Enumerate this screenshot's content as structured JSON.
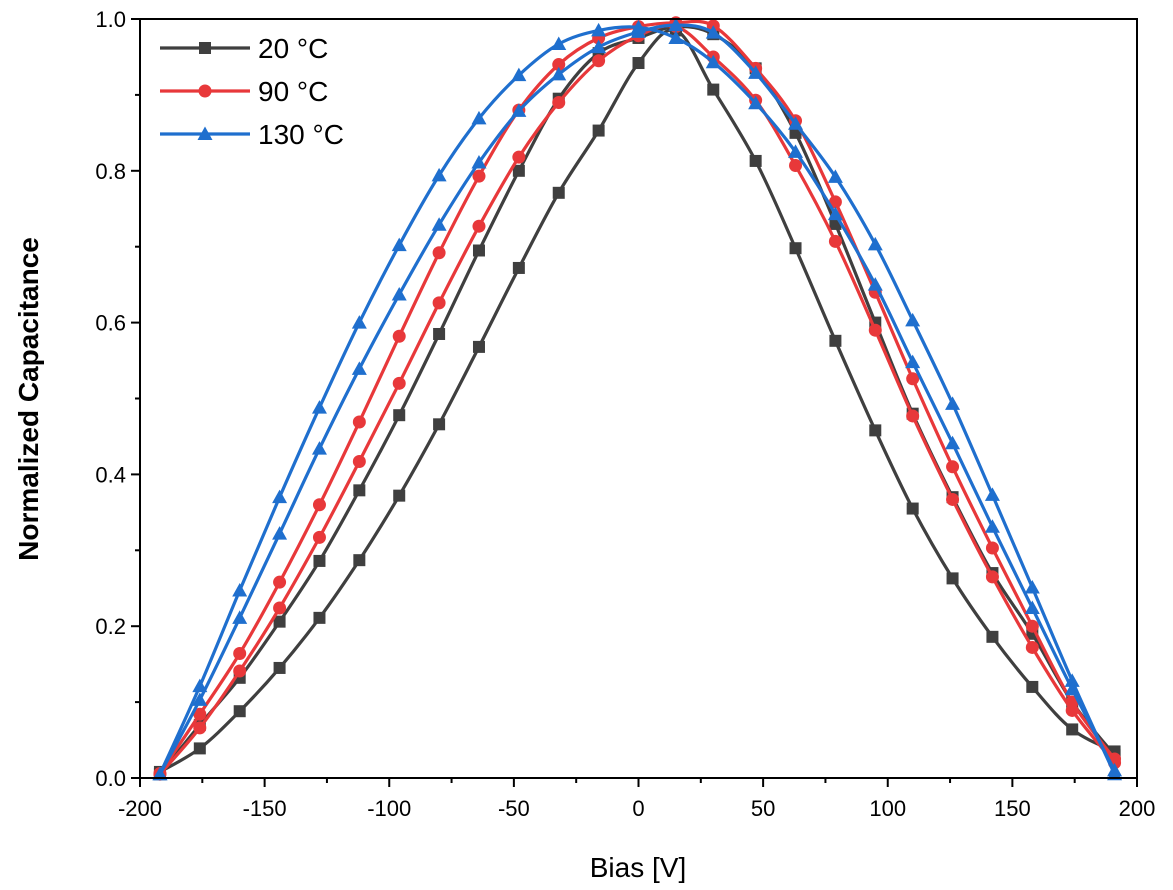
{
  "chart_data": {
    "type": "line",
    "title": "",
    "xlabel": "Bias [V]",
    "ylabel": "Normalized Capacitance",
    "xlim": [
      -200,
      200
    ],
    "ylim": [
      0,
      1.0
    ],
    "x_ticks": [
      "-200",
      "-150",
      "-100",
      "-50",
      "0",
      "50",
      "100",
      "150",
      "200"
    ],
    "y_ticks": [
      "0.0",
      "0.2",
      "0.4",
      "0.6",
      "0.8",
      "1.0"
    ],
    "grid": false,
    "legend_position": "top-left",
    "series": [
      {
        "name": "20 °C",
        "color": "#3f3f3f",
        "marker": "square",
        "sweeps": [
          {
            "x": [
              -192,
              -176,
              -160,
              -144,
              -128,
              -112,
              -96,
              -80,
              -64,
              -48,
              -32,
              -16,
              0,
              15,
              30,
              47,
              63,
              79,
              95,
              110,
              126,
              142,
              158,
              174,
              191
            ],
            "y": [
              0.008,
              0.039,
              0.088,
              0.145,
              0.211,
              0.287,
              0.372,
              0.466,
              0.568,
              0.672,
              0.771,
              0.853,
              0.942,
              0.985,
              0.907,
              0.813,
              0.698,
              0.576,
              0.458,
              0.355,
              0.263,
              0.186,
              0.12,
              0.064,
              0.035
            ]
          },
          {
            "x": [
              191,
              174,
              158,
              142,
              126,
              110,
              95,
              79,
              63,
              47,
              30,
              15,
              0,
              -16,
              -32,
              -48,
              -64,
              -80,
              -96,
              -112,
              -128,
              -144,
              -160,
              -176,
              -192
            ],
            "y": [
              0.03,
              0.1,
              0.19,
              0.27,
              0.37,
              0.48,
              0.6,
              0.73,
              0.85,
              0.935,
              0.98,
              0.99,
              0.975,
              0.955,
              0.895,
              0.8,
              0.695,
              0.585,
              0.478,
              0.379,
              0.286,
              0.206,
              0.132,
              0.07,
              0.005
            ]
          }
        ]
      },
      {
        "name": "90 °C",
        "color": "#e8383a",
        "marker": "circle",
        "sweeps": [
          {
            "x": [
              -192,
              -176,
              -160,
              -144,
              -128,
              -112,
              -96,
              -80,
              -64,
              -48,
              -32,
              -16,
              0,
              15,
              30,
              47,
              63,
              79,
              95,
              110,
              126,
              142,
              158,
              174,
              191
            ],
            "y": [
              0.005,
              0.066,
              0.141,
              0.224,
              0.317,
              0.417,
              0.52,
              0.626,
              0.727,
              0.818,
              0.89,
              0.945,
              0.978,
              0.99,
              0.95,
              0.893,
              0.807,
              0.707,
              0.59,
              0.477,
              0.367,
              0.265,
              0.172,
              0.089,
              0.02
            ]
          },
          {
            "x": [
              191,
              174,
              158,
              142,
              126,
              110,
              95,
              79,
              63,
              47,
              30,
              15,
              0,
              -16,
              -32,
              -48,
              -64,
              -80,
              -96,
              -112,
              -128,
              -144,
              -160,
              -176,
              -192
            ],
            "y": [
              0.025,
              0.1,
              0.2,
              0.303,
              0.41,
              0.526,
              0.64,
              0.759,
              0.866,
              0.935,
              0.991,
              0.995,
              0.99,
              0.975,
              0.94,
              0.88,
              0.793,
              0.692,
              0.582,
              0.469,
              0.36,
              0.258,
              0.164,
              0.084,
              0.006
            ]
          }
        ]
      },
      {
        "name": "130 °C",
        "color": "#1f6fce",
        "marker": "triangle",
        "sweeps": [
          {
            "x": [
              -192,
              -176,
              -160,
              -144,
              -128,
              -112,
              -96,
              -80,
              -64,
              -48,
              -32,
              -16,
              0,
              15,
              30,
              47,
              63,
              79,
              95,
              110,
              126,
              142,
              158,
              174,
              191
            ],
            "y": [
              0.005,
              0.103,
              0.211,
              0.322,
              0.434,
              0.539,
              0.637,
              0.729,
              0.811,
              0.879,
              0.927,
              0.963,
              0.983,
              0.992,
              0.982,
              0.929,
              0.862,
              0.792,
              0.703,
              0.603,
              0.493,
              0.373,
              0.251,
              0.128,
              0.005
            ]
          },
          {
            "x": [
              191,
              174,
              158,
              142,
              126,
              110,
              95,
              79,
              63,
              47,
              30,
              15,
              0,
              -16,
              -32,
              -48,
              -64,
              -80,
              -96,
              -112,
              -128,
              -144,
              -160,
              -176,
              -192
            ],
            "y": [
              0.01,
              0.117,
              0.224,
              0.331,
              0.441,
              0.548,
              0.65,
              0.743,
              0.825,
              0.889,
              0.943,
              0.975,
              0.989,
              0.985,
              0.967,
              0.926,
              0.869,
              0.794,
              0.702,
              0.6,
              0.488,
              0.37,
              0.247,
              0.121,
              0.005
            ]
          }
        ]
      }
    ]
  }
}
